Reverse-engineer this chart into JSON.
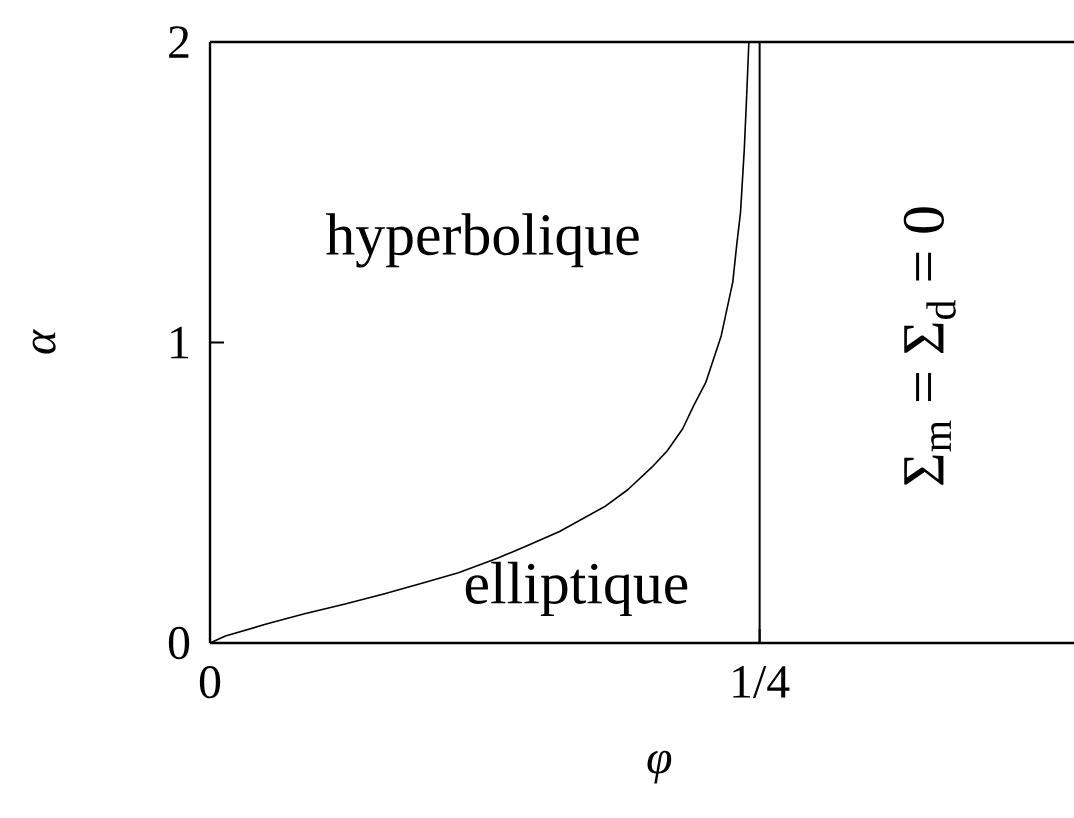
{
  "chart_data": {
    "type": "line",
    "xlabel": "φ",
    "ylabel": "α",
    "x": [
      0,
      0.007,
      0.026,
      0.043,
      0.061,
      0.079,
      0.096,
      0.113,
      0.131,
      0.145,
      0.159,
      0.18,
      0.19,
      0.201,
      0.208,
      0.215,
      0.22,
      0.2255,
      0.2325,
      0.2354,
      0.2378,
      0.2395,
      0.2413,
      0.243,
      0.2441,
      0.2451
    ],
    "series": [
      {
        "color": "#000000",
        "values": [
          0,
          0.023,
          0.064,
          0.097,
          0.129,
          0.163,
          0.198,
          0.234,
          0.283,
          0.326,
          0.371,
          0.456,
          0.51,
          0.585,
          0.64,
          0.713,
          0.79,
          0.867,
          1.022,
          1.12,
          1.202,
          1.32,
          1.433,
          1.64,
          1.82,
          2
        ]
      }
    ],
    "xlim": [
      0,
      0.393
    ],
    "ylim": [
      0,
      2
    ],
    "xticks": [
      0,
      {
        "value": 0.25,
        "label": "1/4"
      }
    ],
    "yticks": [
      0,
      1,
      2
    ],
    "ref_lines": [
      {
        "axis": "x",
        "value": 0.25,
        "color": "#000000"
      }
    ],
    "annotations": [
      "hyperbolique",
      "elliptique",
      "Σ$_{m}$ = Σ$_{d}$ = 0"
    ],
    "marker": "none",
    "line_style": "solid"
  }
}
